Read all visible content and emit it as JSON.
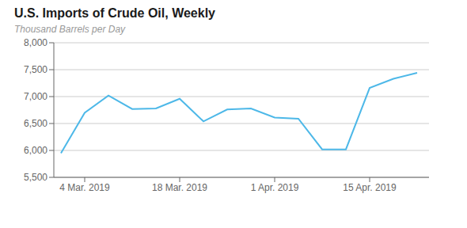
{
  "chart_data": {
    "type": "line",
    "title": "U.S. Imports of Crude Oil, Weekly",
    "subtitle": "Thousand Barrels per Day",
    "x": [
      0,
      1,
      2,
      3,
      4,
      5,
      6,
      7,
      8,
      9,
      10,
      11,
      12,
      13,
      14,
      15
    ],
    "values": [
      5950,
      6700,
      7020,
      6770,
      6780,
      6960,
      6540,
      6760,
      6780,
      6610,
      6590,
      6020,
      6020,
      7160,
      7330,
      7440
    ],
    "color": "#4db8e8",
    "xlim": [
      -0.3,
      15.5
    ],
    "xticks": [
      {
        "value": 1,
        "label": "4 Mar. 2019"
      },
      {
        "value": 5,
        "label": "18 Mar. 2019"
      },
      {
        "value": 9,
        "label": "1 Apr. 2019"
      },
      {
        "value": 13,
        "label": "15 Apr. 2019"
      }
    ],
    "ylim": [
      5500,
      8000
    ],
    "yticks": [
      {
        "value": 5500,
        "label": "5,500"
      },
      {
        "value": 6000,
        "label": "6,000"
      },
      {
        "value": 6500,
        "label": "6,500"
      },
      {
        "value": 7000,
        "label": "7,000"
      },
      {
        "value": 7500,
        "label": "7,500"
      },
      {
        "value": 8000,
        "label": "8,000"
      }
    ],
    "grid": true
  }
}
